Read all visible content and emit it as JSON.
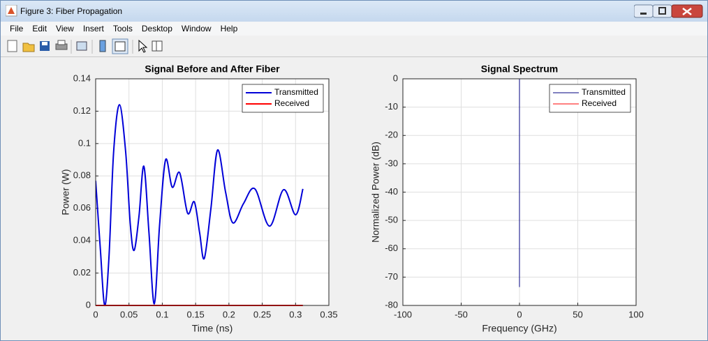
{
  "window": {
    "title": "Figure 3: Fiber Propagation",
    "menu": [
      "File",
      "Edit",
      "View",
      "Insert",
      "Tools",
      "Desktop",
      "Window",
      "Help"
    ]
  },
  "chart_data": [
    {
      "type": "line",
      "title": "Signal Before and After Fiber",
      "xlabel": "Time (ns)",
      "ylabel": "Power (W)",
      "xlim": [
        0,
        0.35
      ],
      "xticks": [
        0,
        0.05,
        0.1,
        0.15,
        0.2,
        0.25,
        0.3,
        0.35
      ],
      "ylim": [
        0,
        0.14
      ],
      "yticks": [
        0,
        0.02,
        0.04,
        0.06,
        0.08,
        0.1,
        0.12,
        0.14
      ],
      "grid": true,
      "legend": "northeast",
      "series": [
        {
          "name": "Transmitted",
          "color": "#0000d8",
          "width": 2,
          "x": [
            0,
            0.007,
            0.0136,
            0.02,
            0.027,
            0.0357,
            0.045,
            0.052,
            0.0577,
            0.065,
            0.0723,
            0.08,
            0.088,
            0.096,
            0.105,
            0.115,
            0.126,
            0.138,
            0.148,
            0.156,
            0.163,
            0.173,
            0.183,
            0.195,
            0.206,
            0.222,
            0.239,
            0.261,
            0.282,
            0.3,
            0.311
          ],
          "values": [
            0.077,
            0.035,
            0,
            0.03,
            0.095,
            0.124,
            0.095,
            0.05,
            0.034,
            0.055,
            0.086,
            0.045,
            0.001,
            0.05,
            0.09,
            0.073,
            0.082,
            0.057,
            0.064,
            0.045,
            0.029,
            0.06,
            0.096,
            0.07,
            0.051,
            0.063,
            0.072,
            0.049,
            0.0715,
            0.056,
            0.072
          ]
        },
        {
          "name": "Received",
          "color": "#ff0000",
          "width": 2,
          "x": [
            0,
            0.311
          ],
          "values": [
            0,
            0
          ]
        }
      ]
    },
    {
      "type": "line",
      "title": "Signal Spectrum",
      "xlabel": "Frequency (GHz)",
      "ylabel": "Normalized Power (dB)",
      "xlim": [
        -100,
        100
      ],
      "xticks": [
        -100,
        -50,
        0,
        50,
        100
      ],
      "ylim": [
        -80,
        0
      ],
      "yticks": [
        -80,
        -70,
        -60,
        -50,
        -40,
        -30,
        -20,
        -10,
        0
      ],
      "grid": true,
      "legend": "northeast",
      "series": [
        {
          "name": "Transmitted",
          "color": "#000080",
          "width": 1,
          "x": [
            0,
            0
          ],
          "values": [
            -73.5,
            0
          ]
        },
        {
          "name": "Received",
          "color": "#ff0000",
          "width": 1,
          "x": [],
          "values": []
        }
      ]
    }
  ]
}
